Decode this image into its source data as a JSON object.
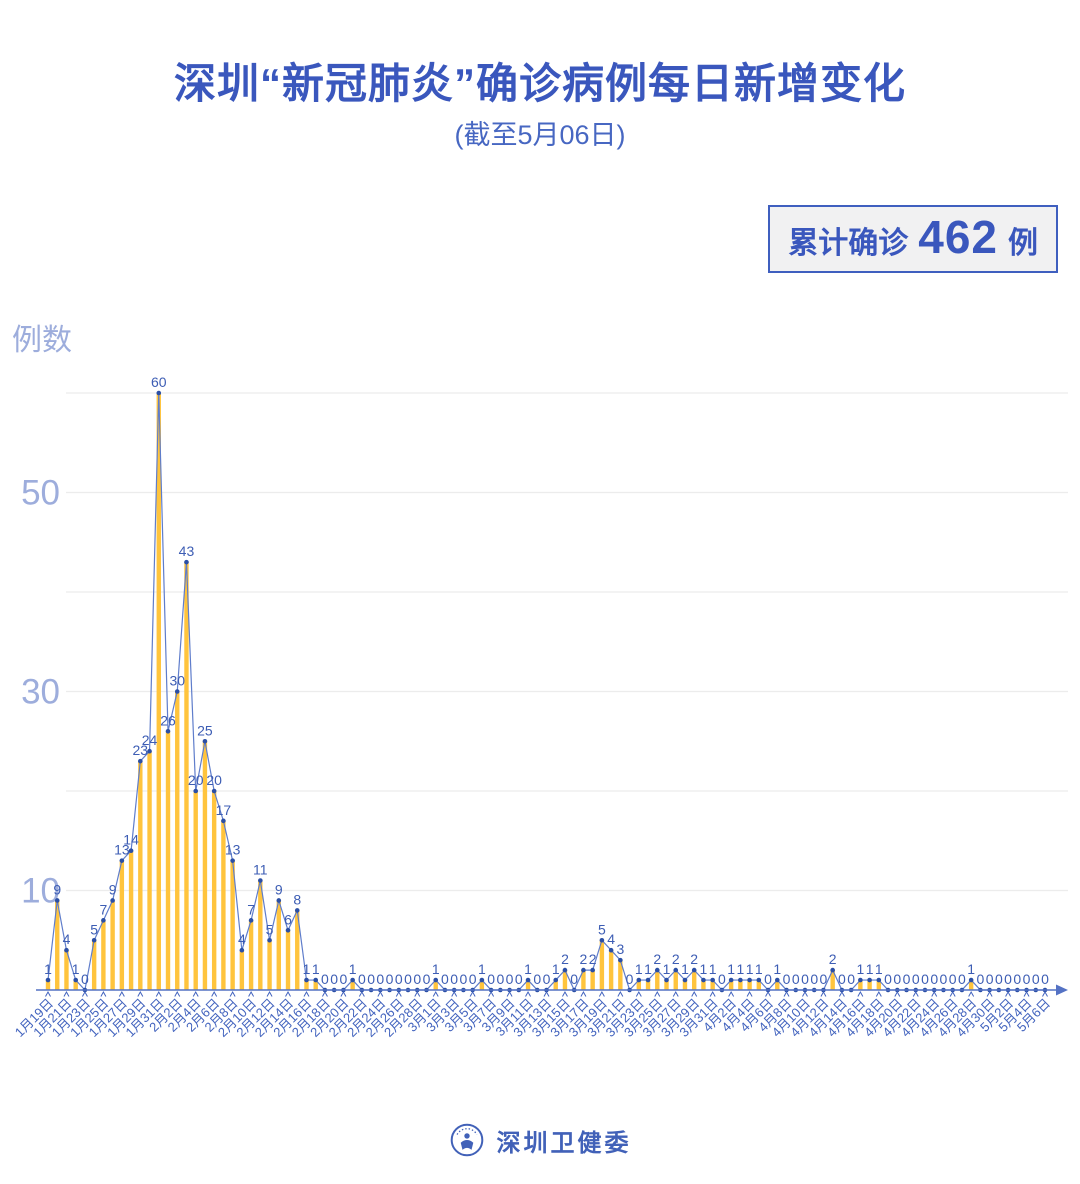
{
  "page_title": "深圳“新冠肺炎”确诊病例每日新增变化",
  "subtitle": "(截至5月06日)",
  "badge": {
    "prefix": "累计确诊",
    "number": "462",
    "suffix": "例"
  },
  "footer": {
    "org": "深圳卫健委"
  },
  "colors": {
    "title": "#3A57BD",
    "subtitle": "#4767C2",
    "badge_border": "#3F5FBF",
    "badge_bg": "#F1F1F2",
    "badge_text": "#3A57BD",
    "bar": "#FFC43D",
    "line": "#5F7DCB",
    "marker": "#2B4FA5",
    "value_label": "#3D5DB4",
    "x_label": "#4263BE",
    "axis": "#5472C4",
    "axis_label": "#9DADDC",
    "grid": "#ECECEC",
    "footer": "#4161B8"
  },
  "chart_data": {
    "type": "bar",
    "overlay_line": true,
    "title": "深圳“新冠肺炎”确诊病例每日新增变化",
    "subtitle": "(截至5月06日)",
    "ylabel": "例数",
    "ylim": [
      0,
      62
    ],
    "grid": true,
    "gridline_values": [
      10,
      20,
      30,
      40,
      50,
      60
    ],
    "y_tick_labels": [
      10,
      30,
      50
    ],
    "x_tick_every": 2,
    "total_confirmed": 462,
    "x": [
      "1月19日",
      "1月20日",
      "1月21日",
      "1月22日",
      "1月23日",
      "1月24日",
      "1月25日",
      "1月26日",
      "1月27日",
      "1月28日",
      "1月29日",
      "1月30日",
      "1月31日",
      "2月1日",
      "2月2日",
      "2月3日",
      "2月4日",
      "2月5日",
      "2月6日",
      "2月7日",
      "2月8日",
      "2月9日",
      "2月10日",
      "2月11日",
      "2月12日",
      "2月13日",
      "2月14日",
      "2月15日",
      "2月16日",
      "2月17日",
      "2月18日",
      "2月19日",
      "2月20日",
      "2月21日",
      "2月22日",
      "2月23日",
      "2月24日",
      "2月25日",
      "2月26日",
      "2月27日",
      "2月28日",
      "2月29日",
      "3月1日",
      "3月2日",
      "3月3日",
      "3月4日",
      "3月5日",
      "3月6日",
      "3月7日",
      "3月8日",
      "3月9日",
      "3月10日",
      "3月11日",
      "3月12日",
      "3月13日",
      "3月14日",
      "3月15日",
      "3月16日",
      "3月17日",
      "3月18日",
      "3月19日",
      "3月20日",
      "3月21日",
      "3月22日",
      "3月23日",
      "3月24日",
      "3月25日",
      "3月26日",
      "3月27日",
      "3月28日",
      "3月29日",
      "3月30日",
      "3月31日",
      "4月1日",
      "4月2日",
      "4月3日",
      "4月4日",
      "4月5日",
      "4月6日",
      "4月7日",
      "4月8日",
      "4月9日",
      "4月10日",
      "4月11日",
      "4月12日",
      "4月13日",
      "4月14日",
      "4月15日",
      "4月16日",
      "4月17日",
      "4月18日",
      "4月19日",
      "4月20日",
      "4月21日",
      "4月22日",
      "4月23日",
      "4月24日",
      "4月25日",
      "4月26日",
      "4月27日",
      "4月28日",
      "4月29日",
      "4月30日",
      "5月1日",
      "5月2日",
      "5月3日",
      "5月4日",
      "5月5日",
      "5月6日"
    ],
    "values": [
      1,
      9,
      4,
      1,
      0,
      5,
      7,
      9,
      13,
      14,
      23,
      24,
      60,
      26,
      30,
      43,
      20,
      25,
      20,
      17,
      13,
      4,
      7,
      11,
      5,
      9,
      6,
      8,
      1,
      1,
      0,
      0,
      0,
      1,
      0,
      0,
      0,
      0,
      0,
      0,
      0,
      0,
      1,
      0,
      0,
      0,
      0,
      1,
      0,
      0,
      0,
      0,
      1,
      0,
      0,
      1,
      2,
      0,
      2,
      2,
      5,
      4,
      3,
      0,
      1,
      1,
      2,
      1,
      2,
      1,
      2,
      1,
      1,
      0,
      1,
      1,
      1,
      1,
      0,
      1,
      0,
      0,
      0,
      0,
      0,
      2,
      0,
      0,
      1,
      1,
      1,
      0,
      0,
      0,
      0,
      0,
      0,
      0,
      0,
      0,
      1,
      0,
      0,
      0,
      0,
      0,
      0,
      0,
      0
    ]
  }
}
